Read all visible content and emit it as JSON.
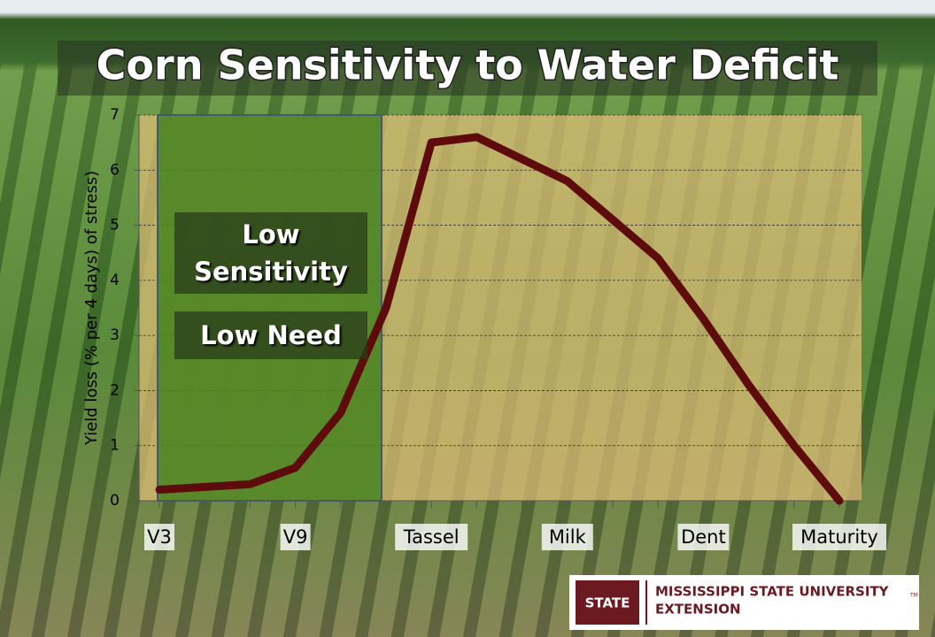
{
  "chart_data": {
    "type": "line",
    "title": "Corn Sensitivity to Water Deficit",
    "y_label": "Yield loss (% per 4 days) of stress)",
    "categories": [
      "V3",
      null,
      null,
      "V9",
      null,
      null,
      "Tassel",
      null,
      null,
      "Milk",
      null,
      null,
      "Dent",
      null,
      null,
      "Maturity"
    ],
    "series": [
      {
        "color": "#5e0b0b",
        "values": [
          0.2,
          0.25,
          0.3,
          0.6,
          1.6,
          3.5,
          6.5,
          6.6,
          6.2,
          5.8,
          5.1,
          4.4,
          3.3,
          2.1,
          1.0,
          0
        ]
      }
    ],
    "ylim": [
      0,
      7
    ],
    "yticks": [
      0,
      1,
      2,
      3,
      4,
      5,
      6,
      7
    ],
    "grid": true,
    "annotations": [
      "Low Sensitivity",
      "Low Need"
    ]
  },
  "logo": {
    "mark": "STATE",
    "name": "MISSISSIPPI STATE UNIVERSITY",
    "trademark": "TM",
    "unit": "EXTENSION"
  }
}
